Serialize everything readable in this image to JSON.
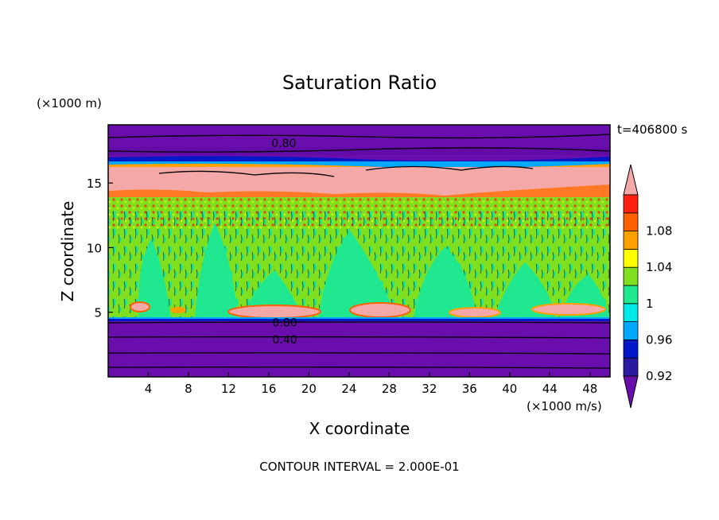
{
  "chart_data": {
    "type": "heatmap",
    "title": "Saturation Ratio",
    "xlabel": "X coordinate",
    "ylabel": "Z coordinate",
    "x_unit_label": "(×1000 m/s)",
    "y_unit_label": "(×1000 m)",
    "time_label": "t=406800 s",
    "footer": "CONTOUR INTERVAL = 2.000E-01",
    "xlim": [
      0,
      50
    ],
    "ylim": [
      0,
      19.5
    ],
    "x_ticks": [
      4,
      8,
      12,
      16,
      20,
      24,
      28,
      32,
      36,
      40,
      44,
      48
    ],
    "y_ticks": [
      5,
      10,
      15
    ],
    "colorbar": {
      "levels": [
        0.92,
        0.94,
        0.96,
        0.98,
        1.0,
        1.02,
        1.04,
        1.06,
        1.08,
        1.1
      ],
      "tick_labels": [
        "0.92",
        "0.96",
        "1",
        "1.04",
        "1.08"
      ],
      "colors": [
        "#6a0dad",
        "#2a1aa0",
        "#0018c8",
        "#00a8ff",
        "#00e8e8",
        "#20e890",
        "#80e020",
        "#ffff00",
        "#ffa000",
        "#ff6000",
        "#ff2010",
        "#f4a8a8"
      ]
    },
    "contour_labels": [
      {
        "text": "0.80",
        "x": 17.5,
        "z": 18.1
      },
      {
        "text": "0.80",
        "x": 17.6,
        "z": 4.2
      },
      {
        "text": "0.40",
        "x": 17.6,
        "z": 2.9
      }
    ],
    "regions": {
      "dry_upper_above_km": 17.0,
      "cloud_top_band_km": [
        14.5,
        17.0
      ],
      "moist_layer_km": [
        5.0,
        14.5
      ],
      "dry_lower_below_km": 4.5
    }
  }
}
